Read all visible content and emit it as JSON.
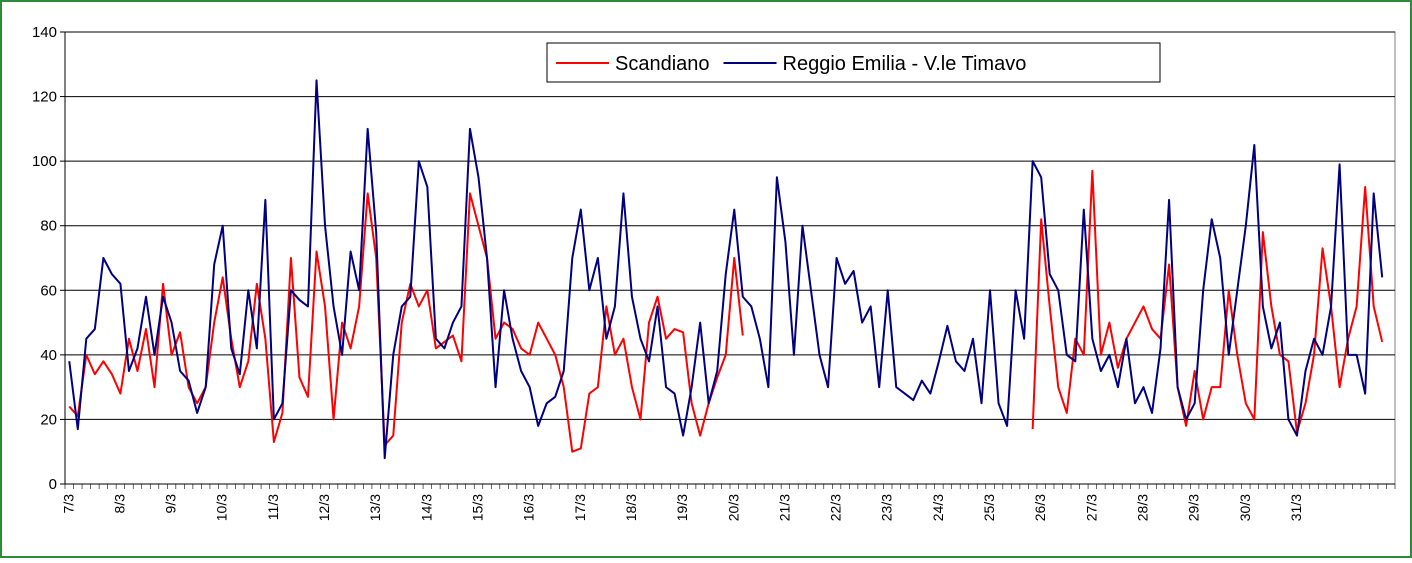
{
  "chart_data": {
    "type": "line",
    "categories": [
      "7/3",
      null,
      null,
      null,
      null,
      null,
      "8/3",
      null,
      null,
      null,
      null,
      null,
      "9/3",
      null,
      null,
      null,
      null,
      null,
      "10/3",
      null,
      null,
      null,
      null,
      null,
      "11/3",
      null,
      null,
      null,
      null,
      null,
      "12/3",
      null,
      null,
      null,
      null,
      null,
      "13/3",
      null,
      null,
      null,
      null,
      null,
      "14/3",
      null,
      null,
      null,
      null,
      null,
      "15/3",
      null,
      null,
      null,
      null,
      null,
      "16/3",
      null,
      null,
      null,
      null,
      null,
      "17/3",
      null,
      null,
      null,
      null,
      null,
      "18/3",
      null,
      null,
      null,
      null,
      null,
      "19/3",
      null,
      null,
      null,
      null,
      null,
      "20/3",
      null,
      null,
      null,
      null,
      null,
      "21/3",
      null,
      null,
      null,
      null,
      null,
      "22/3",
      null,
      null,
      null,
      null,
      null,
      "23/3",
      null,
      null,
      null,
      null,
      null,
      "24/3",
      null,
      null,
      null,
      null,
      null,
      "25/3",
      null,
      null,
      null,
      null,
      null,
      "26/3",
      null,
      null,
      null,
      null,
      null,
      "27/3",
      null,
      null,
      null,
      null,
      null,
      "28/3",
      null,
      null,
      null,
      null,
      null,
      "29/3",
      null,
      null,
      null,
      null,
      null,
      "30/3",
      null,
      null,
      null,
      null,
      null,
      "31/3",
      null,
      null,
      null,
      null,
      null,
      null,
      null,
      null,
      null,
      null,
      null
    ],
    "series": [
      {
        "name": "Scandiano",
        "color": "#ff0000",
        "values": [
          24,
          21,
          40,
          34,
          38,
          34,
          28,
          45,
          35,
          48,
          30,
          62,
          40,
          47,
          30,
          25,
          30,
          50,
          64,
          45,
          30,
          38,
          62,
          45,
          13,
          22,
          70,
          33,
          27,
          72,
          55,
          20,
          50,
          42,
          55,
          90,
          70,
          12,
          15,
          50,
          62,
          55,
          60,
          42,
          44,
          46,
          38,
          90,
          80,
          70,
          45,
          50,
          48,
          42,
          40,
          50,
          45,
          40,
          30,
          10,
          11,
          28,
          30,
          55,
          40,
          45,
          30,
          20,
          50,
          58,
          45,
          48,
          47,
          25,
          15,
          25,
          33,
          40,
          70,
          46,
          null,
          null,
          null,
          null,
          null,
          null,
          null,
          null,
          null,
          null,
          null,
          null,
          null,
          null,
          null,
          null,
          null,
          null,
          null,
          null,
          null,
          null,
          null,
          null,
          null,
          null,
          null,
          null,
          null,
          null,
          null,
          null,
          null,
          17,
          82,
          55,
          30,
          22,
          45,
          40,
          97,
          40,
          50,
          36,
          45,
          50,
          55,
          48,
          45,
          68,
          30,
          18,
          35,
          20,
          30,
          30,
          60,
          40,
          25,
          20,
          78,
          55,
          40,
          38,
          16,
          25,
          40,
          73,
          55,
          30,
          45,
          55,
          92,
          55,
          44,
          null
        ]
      },
      {
        "name": "Reggio Emilia - V.le Timavo",
        "color": "#000080",
        "values": [
          38,
          17,
          45,
          48,
          70,
          65,
          62,
          35,
          42,
          58,
          40,
          58,
          50,
          35,
          32,
          22,
          30,
          68,
          80,
          42,
          34,
          60,
          42,
          88,
          20,
          25,
          60,
          57,
          55,
          125,
          80,
          55,
          40,
          72,
          60,
          110,
          78,
          8,
          40,
          55,
          58,
          100,
          92,
          45,
          42,
          50,
          55,
          110,
          95,
          70,
          30,
          60,
          45,
          35,
          30,
          18,
          25,
          27,
          35,
          70,
          85,
          60,
          70,
          45,
          55,
          90,
          58,
          45,
          38,
          55,
          30,
          28,
          15,
          30,
          50,
          25,
          35,
          65,
          85,
          58,
          55,
          45,
          30,
          95,
          75,
          40,
          80,
          60,
          40,
          30,
          70,
          62,
          66,
          50,
          55,
          30,
          60,
          30,
          28,
          26,
          32,
          28,
          38,
          49,
          38,
          35,
          45,
          25,
          60,
          25,
          18,
          60,
          45,
          100,
          95,
          65,
          60,
          40,
          38,
          85,
          45,
          35,
          40,
          30,
          45,
          25,
          30,
          22,
          42,
          88,
          30,
          20,
          25,
          60,
          82,
          70,
          40,
          60,
          80,
          105,
          55,
          42,
          50,
          20,
          15,
          35,
          45,
          40,
          55,
          99,
          40,
          40,
          28,
          90,
          64,
          null
        ]
      }
    ],
    "ylim": [
      0,
      140
    ],
    "yticks": [
      0,
      20,
      40,
      60,
      80,
      100,
      120,
      140
    ],
    "grid": true,
    "legend": "top"
  }
}
